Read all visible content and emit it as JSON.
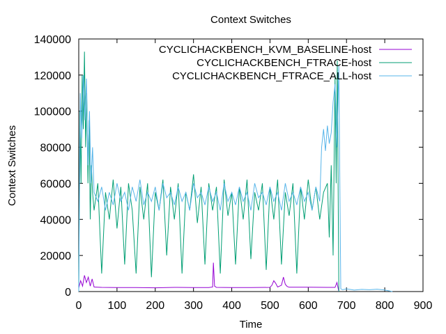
{
  "chart_data": {
    "type": "line",
    "title": "Context Switches",
    "xlabel": "Time",
    "ylabel": "Context Switches",
    "xlim": [
      0,
      900
    ],
    "ylim": [
      0,
      140000
    ],
    "x_ticks": [
      "0",
      "100",
      "200",
      "300",
      "400",
      "500",
      "600",
      "700",
      "800",
      "900"
    ],
    "y_ticks": [
      "0",
      "20000",
      "40000",
      "60000",
      "80000",
      "100000",
      "120000",
      "140000"
    ],
    "grid": false,
    "legend_position": "top-right",
    "series": [
      {
        "name": "CYCLICHACKBENCH_KVM_BASELINE-host",
        "color": "#9400d3",
        "x": [
          0,
          5,
          10,
          15,
          20,
          25,
          30,
          35,
          40,
          60,
          100,
          150,
          200,
          250,
          300,
          340,
          350,
          352,
          355,
          360,
          400,
          450,
          500,
          505,
          510,
          515,
          520,
          530,
          535,
          540,
          545,
          550,
          600,
          650,
          670,
          675,
          680
        ],
        "y": [
          2000,
          6000,
          3000,
          9000,
          5000,
          8000,
          3000,
          7000,
          2500,
          2300,
          2200,
          2200,
          2100,
          2300,
          2200,
          2200,
          2500,
          16000,
          3000,
          2300,
          2200,
          2200,
          2300,
          3500,
          6000,
          4500,
          2500,
          3500,
          8000,
          4000,
          2800,
          2400,
          2400,
          2300,
          2300,
          5000,
          0
        ]
      },
      {
        "name": "CYCLICHACKBENCH_FTRACE-host",
        "color": "#009e73",
        "x": [
          0,
          3,
          6,
          9,
          12,
          15,
          18,
          21,
          24,
          27,
          30,
          33,
          36,
          40,
          50,
          60,
          70,
          80,
          90,
          100,
          110,
          120,
          130,
          140,
          150,
          160,
          170,
          180,
          190,
          200,
          210,
          220,
          230,
          240,
          250,
          260,
          270,
          280,
          290,
          300,
          310,
          320,
          330,
          340,
          350,
          360,
          370,
          380,
          390,
          400,
          410,
          420,
          430,
          440,
          450,
          460,
          470,
          480,
          490,
          500,
          510,
          520,
          530,
          540,
          550,
          560,
          570,
          580,
          590,
          600,
          610,
          620,
          630,
          640,
          650,
          655,
          660,
          665,
          670,
          673,
          676,
          680
        ],
        "y": [
          0,
          100000,
          60000,
          120000,
          90000,
          133000,
          80000,
          110000,
          60000,
          95000,
          40000,
          70000,
          55000,
          45000,
          60000,
          10000,
          55000,
          40000,
          62000,
          35000,
          58000,
          15000,
          60000,
          45000,
          10000,
          58000,
          40000,
          60000,
          8000,
          55000,
          45000,
          62000,
          20000,
          58000,
          40000,
          60000,
          10000,
          55000,
          45000,
          65000,
          38000,
          58000,
          15000,
          60000,
          45000,
          58000,
          10000,
          62000,
          42000,
          55000,
          15000,
          58000,
          40000,
          62000,
          18000,
          55000,
          45000,
          60000,
          12000,
          58000,
          40000,
          62000,
          15000,
          55000,
          42000,
          60000,
          10000,
          58000,
          40000,
          62000,
          45000,
          58000,
          40000,
          55000,
          60000,
          30000,
          70000,
          20000,
          120000,
          60000,
          128000,
          0
        ]
      },
      {
        "name": "CYCLICHACKBENCH_FTRACE_ALL-host",
        "color": "#56b4e9",
        "x": [
          0,
          4,
          8,
          12,
          16,
          20,
          24,
          28,
          32,
          36,
          40,
          50,
          60,
          70,
          80,
          90,
          100,
          110,
          120,
          130,
          140,
          150,
          160,
          170,
          180,
          190,
          200,
          210,
          220,
          230,
          240,
          250,
          260,
          270,
          280,
          290,
          300,
          310,
          320,
          330,
          340,
          350,
          360,
          370,
          380,
          390,
          400,
          410,
          420,
          430,
          440,
          450,
          460,
          470,
          480,
          490,
          500,
          510,
          520,
          530,
          540,
          550,
          560,
          570,
          580,
          590,
          600,
          610,
          620,
          630,
          635,
          640,
          645,
          650,
          655,
          660,
          665,
          670,
          675,
          680,
          685,
          690,
          700,
          720,
          740,
          760,
          780,
          800,
          820
        ],
        "y": [
          0,
          110000,
          85000,
          120000,
          95000,
          118000,
          70000,
          100000,
          60000,
          80000,
          55000,
          50000,
          58000,
          45000,
          55000,
          48000,
          60000,
          50000,
          55000,
          45000,
          58000,
          50000,
          62000,
          48000,
          55000,
          50000,
          58000,
          45000,
          60000,
          52000,
          55000,
          48000,
          58000,
          50000,
          55000,
          45000,
          60000,
          52000,
          55000,
          48000,
          58000,
          50000,
          55000,
          45000,
          60000,
          50000,
          55000,
          48000,
          58000,
          50000,
          55000,
          45000,
          60000,
          52000,
          55000,
          48000,
          58000,
          50000,
          55000,
          45000,
          60000,
          50000,
          55000,
          48000,
          58000,
          50000,
          55000,
          45000,
          58000,
          50000,
          80000,
          90000,
          78000,
          92000,
          82000,
          88000,
          105000,
          115000,
          80000,
          125000,
          1500,
          1000,
          1500,
          800,
          1200,
          1000,
          1300,
          900,
          0
        ]
      }
    ]
  }
}
